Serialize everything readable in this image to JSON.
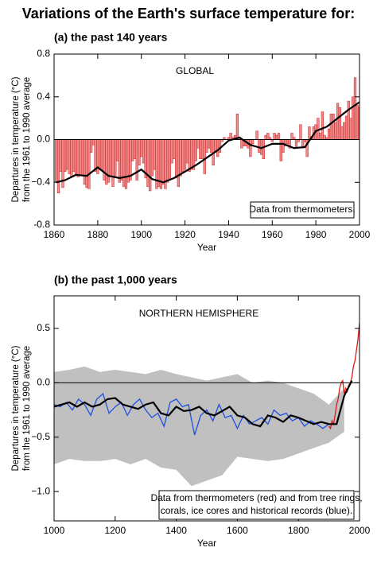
{
  "chart_data": [
    {
      "type": "bar",
      "title": "Variations of the Earth's surface temperature for:",
      "subtitle": "(a) the past 140 years",
      "annotation": "GLOBAL",
      "note": [
        "Data from thermometers."
      ],
      "xlabel": "Year",
      "ylabel": [
        "Departures in temperature (°C)",
        "from the 1961 to 1990 average"
      ],
      "xlim": [
        1860,
        2000
      ],
      "xticks": [
        1860,
        1880,
        1900,
        1920,
        1940,
        1960,
        1980,
        2000
      ],
      "ylim": [
        -0.8,
        0.8
      ],
      "yticks": [
        -0.8,
        {
          "value": -0.4,
          "label": "−0.4"
        },
        {
          "value": 0,
          "label": "0.0"
        },
        0.4,
        0.8
      ],
      "color": "#f08a8a",
      "edge_color": "#c81e1e",
      "x": [
        1861,
        1862,
        1863,
        1864,
        1865,
        1866,
        1867,
        1868,
        1869,
        1870,
        1871,
        1872,
        1873,
        1874,
        1875,
        1876,
        1877,
        1878,
        1879,
        1880,
        1881,
        1882,
        1883,
        1884,
        1885,
        1886,
        1887,
        1888,
        1889,
        1890,
        1891,
        1892,
        1893,
        1894,
        1895,
        1896,
        1897,
        1898,
        1899,
        1900,
        1901,
        1902,
        1903,
        1904,
        1905,
        1906,
        1907,
        1908,
        1909,
        1910,
        1911,
        1912,
        1913,
        1914,
        1915,
        1916,
        1917,
        1918,
        1919,
        1920,
        1921,
        1922,
        1923,
        1924,
        1925,
        1926,
        1927,
        1928,
        1929,
        1930,
        1931,
        1932,
        1933,
        1934,
        1935,
        1936,
        1937,
        1938,
        1939,
        1940,
        1941,
        1942,
        1943,
        1944,
        1945,
        1946,
        1947,
        1948,
        1949,
        1950,
        1951,
        1952,
        1953,
        1954,
        1955,
        1956,
        1957,
        1958,
        1959,
        1960,
        1961,
        1962,
        1963,
        1964,
        1965,
        1966,
        1967,
        1968,
        1969,
        1970,
        1971,
        1972,
        1973,
        1974,
        1975,
        1976,
        1977,
        1978,
        1979,
        1980,
        1981,
        1982,
        1983,
        1984,
        1985,
        1986,
        1987,
        1988,
        1989,
        1990,
        1991,
        1992,
        1993,
        1994,
        1995,
        1996,
        1997,
        1998,
        1999,
        2000
      ],
      "values": [
        -0.4,
        -0.5,
        -0.3,
        -0.45,
        -0.3,
        -0.28,
        -0.32,
        -0.35,
        -0.3,
        -0.32,
        -0.35,
        -0.33,
        -0.34,
        -0.42,
        -0.45,
        -0.46,
        -0.12,
        -0.05,
        -0.3,
        -0.32,
        -0.28,
        -0.28,
        -0.38,
        -0.42,
        -0.4,
        -0.34,
        -0.44,
        -0.34,
        -0.2,
        -0.4,
        -0.38,
        -0.44,
        -0.46,
        -0.4,
        -0.38,
        -0.2,
        -0.18,
        -0.38,
        -0.24,
        -0.16,
        -0.22,
        -0.36,
        -0.44,
        -0.48,
        -0.34,
        -0.28,
        -0.46,
        -0.44,
        -0.46,
        -0.42,
        -0.46,
        -0.4,
        -0.38,
        -0.22,
        -0.18,
        -0.36,
        -0.44,
        -0.34,
        -0.3,
        -0.28,
        -0.22,
        -0.3,
        -0.28,
        -0.28,
        -0.2,
        -0.08,
        -0.18,
        -0.18,
        -0.32,
        -0.12,
        -0.08,
        -0.12,
        -0.24,
        -0.12,
        -0.16,
        -0.12,
        -0.02,
        0.02,
        0.0,
        0.02,
        0.06,
        0.02,
        0.04,
        0.24,
        0.02,
        -0.08,
        -0.06,
        -0.06,
        -0.08,
        -0.16,
        -0.04,
        0.0,
        0.08,
        -0.12,
        -0.14,
        -0.18,
        0.04,
        0.06,
        0.02,
        -0.02,
        0.06,
        0.04,
        0.06,
        -0.2,
        -0.12,
        -0.06,
        -0.04,
        -0.08,
        0.06,
        0.02,
        -0.08,
        -0.02,
        0.14,
        -0.08,
        -0.02,
        -0.16,
        0.12,
        0.02,
        0.12,
        0.14,
        0.2,
        0.06,
        0.26,
        0.04,
        0.02,
        0.1,
        0.24,
        0.24,
        0.16,
        0.34,
        0.3,
        0.12,
        0.16,
        0.22,
        0.36,
        0.2,
        0.4,
        0.58,
        0.32,
        0.3
      ],
      "smooth": {
        "color": "#000000",
        "x": [
          1861,
          1865,
          1870,
          1875,
          1880,
          1885,
          1890,
          1895,
          1900,
          1905,
          1910,
          1915,
          1920,
          1925,
          1930,
          1935,
          1940,
          1945,
          1950,
          1955,
          1960,
          1965,
          1970,
          1975,
          1980,
          1985,
          1990,
          1995,
          2000
        ],
        "values": [
          -0.4,
          -0.38,
          -0.33,
          -0.34,
          -0.26,
          -0.34,
          -0.36,
          -0.34,
          -0.28,
          -0.37,
          -0.4,
          -0.36,
          -0.3,
          -0.24,
          -0.17,
          -0.1,
          -0.01,
          0.02,
          -0.05,
          -0.08,
          -0.04,
          -0.04,
          -0.08,
          -0.07,
          0.08,
          0.12,
          0.2,
          0.28,
          0.35
        ]
      }
    },
    {
      "type": "line",
      "subtitle": "(b) the past 1,000 years",
      "annotation": "NORTHERN HEMISPHERE",
      "note": [
        "Data from thermometers (red) and from tree rings,",
        "corals, ice cores and historical records (blue)."
      ],
      "xlabel": "Year",
      "ylabel": [
        "Departures in temperature (°C)",
        "from the 1961 to 1990 average"
      ],
      "xlim": [
        1000,
        2000
      ],
      "xticks": [
        1000,
        1200,
        1400,
        1600,
        1800,
        2000
      ],
      "ylim": [
        -1.27,
        0.8
      ],
      "yticks": [
        {
          "value": -1,
          "label": "−1.0"
        },
        {
          "value": -0.5,
          "label": "−0.5"
        },
        {
          "value": 0,
          "label": "0.0"
        },
        0.5
      ],
      "band": {
        "color": "#c0c0c0",
        "x": [
          1000,
          1050,
          1100,
          1150,
          1200,
          1250,
          1300,
          1350,
          1400,
          1450,
          1500,
          1550,
          1600,
          1650,
          1700,
          1750,
          1800,
          1850,
          1900,
          1950
        ],
        "lower": [
          -0.75,
          -0.7,
          -0.72,
          -0.72,
          -0.7,
          -0.75,
          -0.7,
          -0.78,
          -0.8,
          -0.95,
          -0.9,
          -0.85,
          -0.68,
          -0.7,
          -0.72,
          -0.7,
          -0.65,
          -0.6,
          -0.55,
          -0.45
        ],
        "upper": [
          0.1,
          0.12,
          0.15,
          0.1,
          0.12,
          0.1,
          0.08,
          0.12,
          0.08,
          0.05,
          0.02,
          0.05,
          0.08,
          0.0,
          0.02,
          0.0,
          -0.05,
          -0.1,
          -0.2,
          -0.05
        ]
      },
      "series": [
        {
          "color": "#1f4fe0",
          "x": [
            1000,
            1020,
            1040,
            1060,
            1080,
            1100,
            1120,
            1140,
            1160,
            1180,
            1200,
            1220,
            1240,
            1260,
            1280,
            1300,
            1320,
            1340,
            1360,
            1380,
            1400,
            1420,
            1440,
            1460,
            1480,
            1500,
            1520,
            1540,
            1560,
            1580,
            1600,
            1620,
            1640,
            1660,
            1680,
            1700,
            1720,
            1740,
            1760,
            1780,
            1800,
            1820,
            1840,
            1860,
            1880,
            1900
          ],
          "values": [
            -0.2,
            -0.22,
            -0.18,
            -0.25,
            -0.15,
            -0.2,
            -0.3,
            -0.15,
            -0.1,
            -0.28,
            -0.22,
            -0.18,
            -0.3,
            -0.2,
            -0.15,
            -0.25,
            -0.32,
            -0.28,
            -0.4,
            -0.18,
            -0.15,
            -0.22,
            -0.2,
            -0.48,
            -0.3,
            -0.25,
            -0.35,
            -0.2,
            -0.32,
            -0.3,
            -0.42,
            -0.3,
            -0.38,
            -0.35,
            -0.32,
            -0.38,
            -0.25,
            -0.3,
            -0.28,
            -0.35,
            -0.32,
            -0.4,
            -0.35,
            -0.38,
            -0.42,
            -0.38
          ]
        },
        {
          "color": "#e01818",
          "x": [
            1900,
            1905,
            1910,
            1915,
            1920,
            1925,
            1930,
            1935,
            1940,
            1945,
            1950,
            1955,
            1960,
            1965,
            1970,
            1975,
            1980,
            1985,
            1990,
            1995,
            2000
          ],
          "values": [
            -0.4,
            -0.42,
            -0.35,
            -0.38,
            -0.3,
            -0.2,
            -0.15,
            -0.05,
            0.0,
            0.02,
            -0.1,
            -0.05,
            -0.08,
            -0.02,
            0.0,
            0.05,
            0.15,
            0.2,
            0.3,
            0.4,
            0.55
          ]
        },
        {
          "color": "#000000",
          "x": [
            1000,
            1025,
            1050,
            1075,
            1100,
            1125,
            1150,
            1175,
            1200,
            1225,
            1250,
            1275,
            1300,
            1325,
            1350,
            1375,
            1400,
            1425,
            1450,
            1475,
            1500,
            1525,
            1550,
            1575,
            1600,
            1625,
            1650,
            1675,
            1700,
            1725,
            1750,
            1775,
            1800,
            1825,
            1850,
            1875,
            1900,
            1925,
            1950,
            1975
          ],
          "values": [
            -0.22,
            -0.2,
            -0.18,
            -0.22,
            -0.18,
            -0.22,
            -0.2,
            -0.15,
            -0.14,
            -0.2,
            -0.22,
            -0.24,
            -0.2,
            -0.18,
            -0.28,
            -0.3,
            -0.22,
            -0.26,
            -0.25,
            -0.22,
            -0.28,
            -0.3,
            -0.26,
            -0.22,
            -0.3,
            -0.32,
            -0.38,
            -0.4,
            -0.3,
            -0.32,
            -0.36,
            -0.3,
            -0.32,
            -0.35,
            -0.38,
            -0.36,
            -0.38,
            -0.38,
            -0.12,
            0.02
          ]
        }
      ]
    }
  ]
}
